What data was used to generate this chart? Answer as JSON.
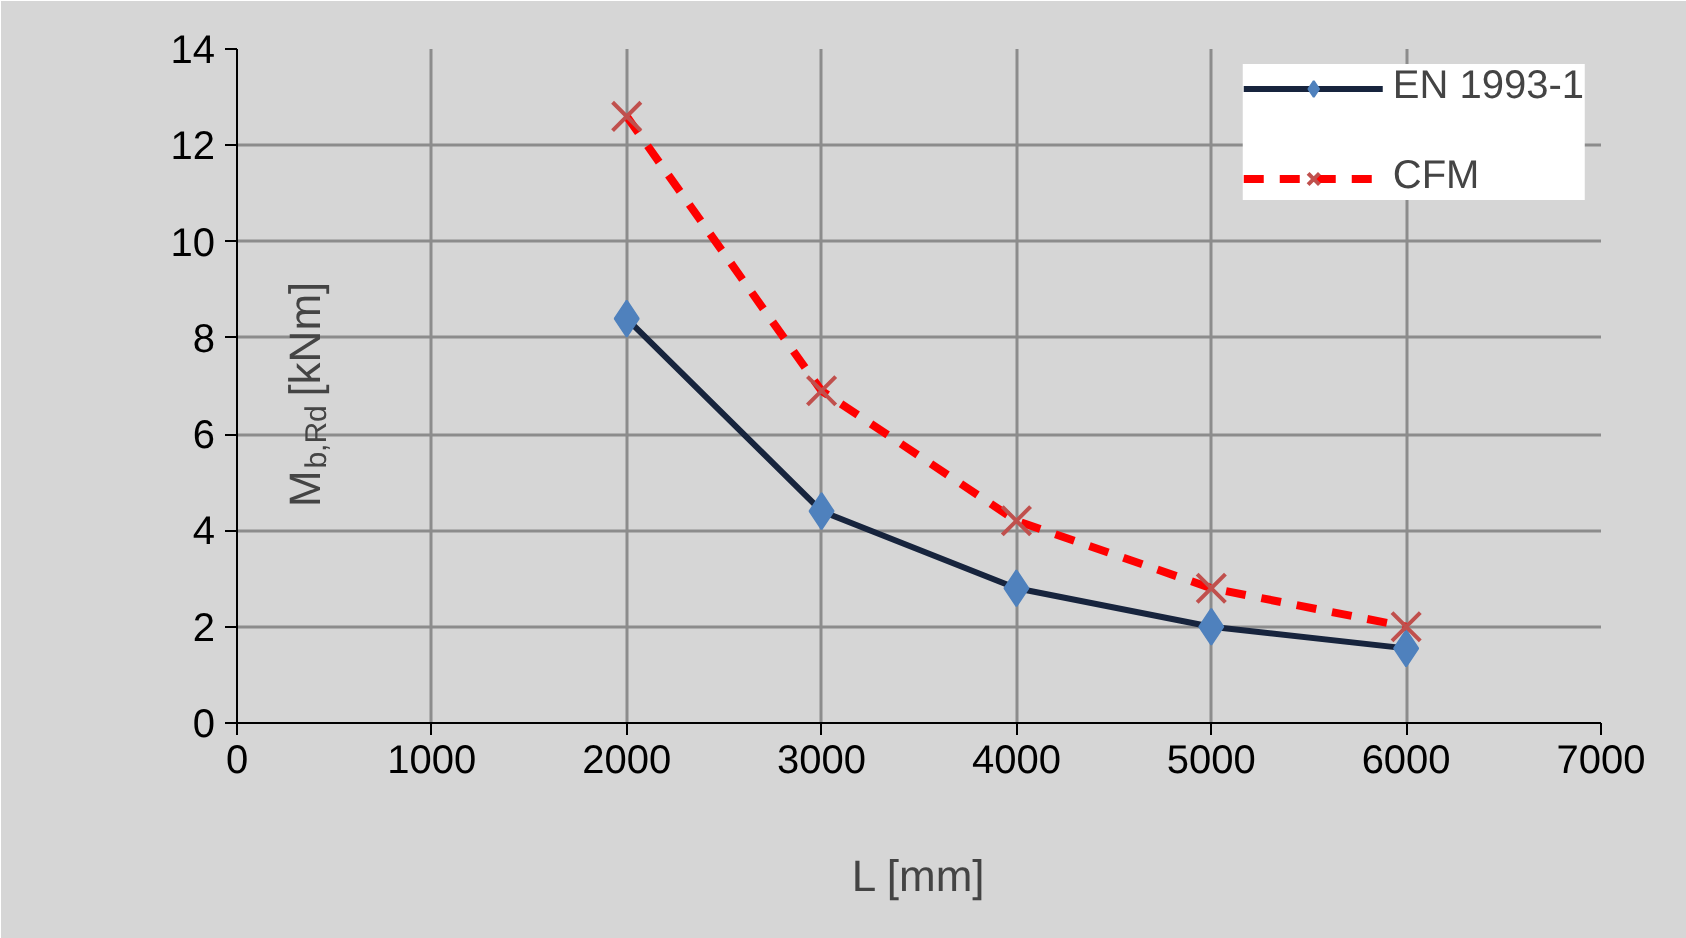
{
  "chart_data": {
    "type": "line",
    "xlabel": "L [mm]",
    "ylabel": "M$_{b,Rd}$ [kNm]",
    "x": [
      2000,
      3000,
      4000,
      5000,
      6000
    ],
    "series": [
      {
        "name": "EN 1993-1",
        "color": "#17243d",
        "values": [
          8.4,
          4.4,
          2.8,
          2.0,
          1.55
        ],
        "marker": "diamond",
        "line_style": "solid"
      },
      {
        "name": "CFM",
        "color": "#ff0000",
        "values": [
          12.6,
          6.9,
          4.2,
          2.8,
          2.0
        ],
        "marker": "cross",
        "line_style": "dashed"
      }
    ],
    "xlim": [
      0,
      7000
    ],
    "xticks": [
      0,
      1000,
      2000,
      3000,
      4000,
      5000,
      6000,
      7000
    ],
    "ylim": [
      0,
      14
    ],
    "yticks": [
      0,
      2,
      4,
      6,
      8,
      10,
      12,
      14
    ],
    "grid": true,
    "legend": "top right"
  }
}
